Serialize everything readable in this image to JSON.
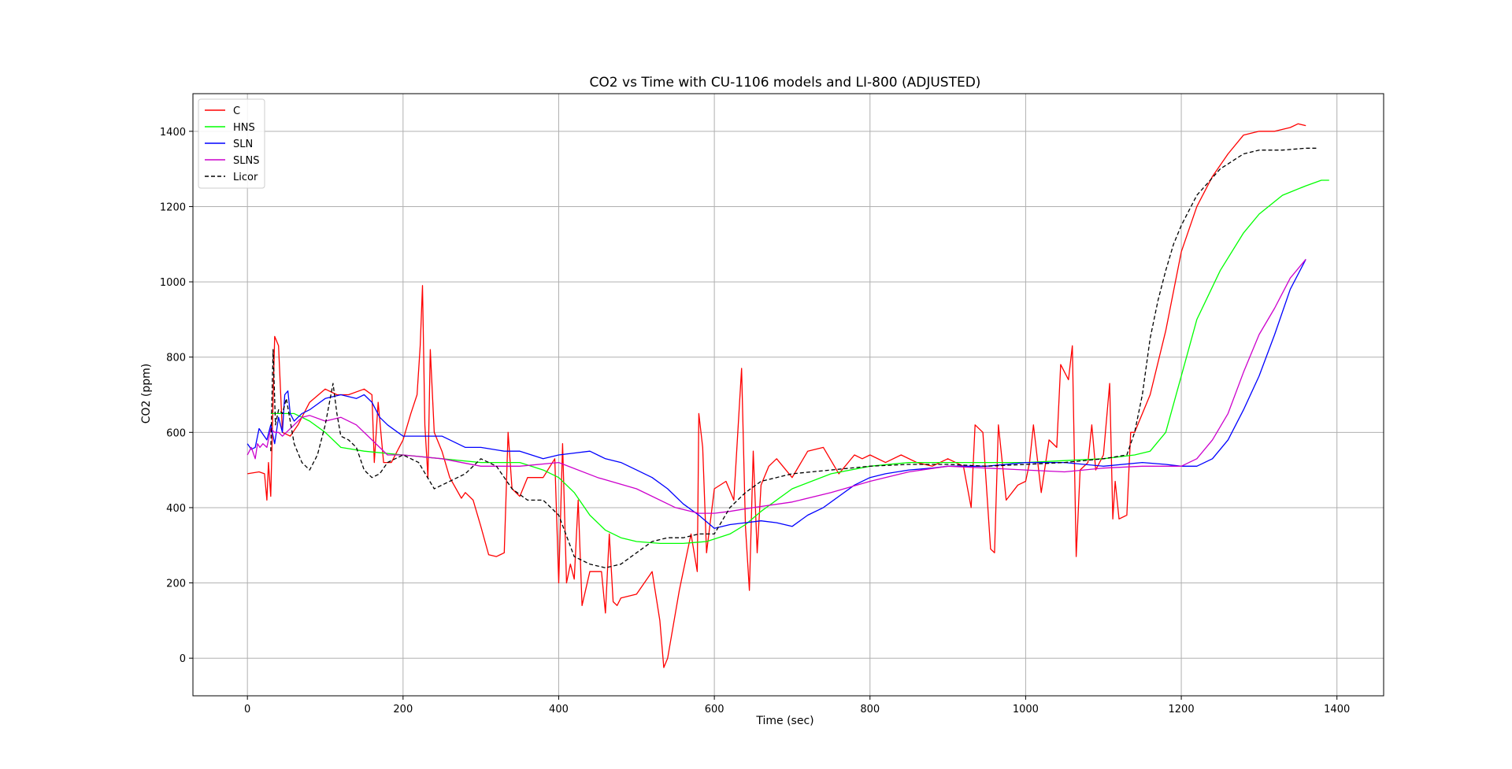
{
  "chart_data": {
    "type": "line",
    "title": "CO2 vs Time with CU-1106 models and LI-800 (ADJUSTED)",
    "xlabel": "Time (sec)",
    "ylabel": "CO2 (ppm)",
    "xlim": [
      -70,
      1460
    ],
    "ylim": [
      -100,
      1500
    ],
    "xticks": [
      0,
      200,
      400,
      600,
      800,
      1000,
      1200,
      1400
    ],
    "yticks": [
      0,
      200,
      400,
      600,
      800,
      1000,
      1200,
      1400
    ],
    "grid": true,
    "legend_position": "top-left",
    "series": [
      {
        "name": "C",
        "color": "#ff0000",
        "dash": "solid",
        "x": [
          0,
          15,
          22,
          25,
          27,
          30,
          35,
          40,
          45,
          55,
          65,
          80,
          100,
          115,
          130,
          150,
          160,
          163,
          168,
          175,
          185,
          200,
          210,
          218,
          222,
          225,
          228,
          232,
          235,
          240,
          250,
          260,
          275,
          280,
          290,
          300,
          310,
          320,
          330,
          335,
          340,
          350,
          360,
          380,
          395,
          400,
          405,
          410,
          415,
          420,
          425,
          430,
          440,
          455,
          460,
          465,
          470,
          475,
          480,
          500,
          520,
          530,
          535,
          540,
          555,
          570,
          578,
          580,
          585,
          590,
          600,
          615,
          625,
          635,
          640,
          645,
          650,
          655,
          660,
          670,
          680,
          700,
          720,
          740,
          760,
          780,
          790,
          800,
          820,
          840,
          860,
          880,
          900,
          920,
          930,
          935,
          945,
          955,
          960,
          965,
          975,
          990,
          1000,
          1005,
          1010,
          1020,
          1030,
          1040,
          1045,
          1055,
          1060,
          1065,
          1070,
          1080,
          1085,
          1090,
          1100,
          1108,
          1112,
          1115,
          1120,
          1130,
          1135,
          1140,
          1160,
          1180,
          1200,
          1220,
          1240,
          1260,
          1280,
          1300,
          1320,
          1340,
          1350,
          1360
        ],
        "y": [
          490,
          495,
          490,
          420,
          520,
          430,
          855,
          830,
          600,
          590,
          620,
          680,
          715,
          700,
          700,
          715,
          700,
          520,
          680,
          520,
          520,
          580,
          650,
          700,
          830,
          990,
          620,
          480,
          820,
          600,
          550,
          480,
          425,
          440,
          420,
          350,
          275,
          270,
          280,
          600,
          450,
          430,
          480,
          480,
          530,
          200,
          570,
          200,
          250,
          210,
          420,
          140,
          230,
          230,
          120,
          330,
          150,
          140,
          160,
          170,
          230,
          100,
          -25,
          0,
          180,
          330,
          230,
          650,
          560,
          280,
          450,
          470,
          420,
          770,
          350,
          180,
          550,
          280,
          460,
          510,
          530,
          480,
          550,
          560,
          490,
          540,
          530,
          540,
          520,
          540,
          520,
          510,
          530,
          510,
          400,
          620,
          600,
          290,
          280,
          620,
          420,
          460,
          470,
          520,
          620,
          440,
          580,
          560,
          780,
          740,
          830,
          270,
          500,
          520,
          620,
          500,
          540,
          730,
          370,
          470,
          370,
          380,
          600,
          600,
          700,
          870,
          1080,
          1200,
          1280,
          1340,
          1390,
          1400,
          1400,
          1410,
          1420,
          1415
        ]
      },
      {
        "name": "HNS",
        "color": "#00ff00",
        "dash": "solid",
        "x": [
          30,
          60,
          80,
          100,
          120,
          150,
          200,
          250,
          300,
          350,
          380,
          400,
          420,
          440,
          460,
          480,
          500,
          530,
          560,
          590,
          620,
          640,
          660,
          700,
          750,
          800,
          850,
          900,
          950,
          1000,
          1050,
          1100,
          1140,
          1160,
          1180,
          1200,
          1220,
          1250,
          1280,
          1300,
          1330,
          1360,
          1380,
          1390
        ],
        "y": [
          650,
          650,
          630,
          600,
          560,
          550,
          540,
          530,
          520,
          520,
          500,
          480,
          440,
          380,
          340,
          320,
          310,
          305,
          305,
          310,
          330,
          355,
          390,
          450,
          490,
          510,
          520,
          520,
          520,
          520,
          525,
          530,
          540,
          550,
          600,
          750,
          900,
          1030,
          1130,
          1180,
          1230,
          1255,
          1270,
          1270
        ]
      },
      {
        "name": "SLN",
        "color": "#0000ff",
        "dash": "solid",
        "x": [
          0,
          5,
          10,
          15,
          20,
          25,
          30,
          35,
          40,
          45,
          48,
          52,
          55,
          60,
          70,
          80,
          100,
          120,
          140,
          150,
          160,
          170,
          180,
          200,
          220,
          250,
          280,
          300,
          330,
          350,
          380,
          400,
          420,
          440,
          460,
          480,
          500,
          520,
          540,
          560,
          580,
          600,
          620,
          640,
          660,
          680,
          700,
          720,
          740,
          760,
          780,
          800,
          820,
          850,
          880,
          900,
          950,
          1000,
          1050,
          1100,
          1150,
          1180,
          1200,
          1220,
          1240,
          1260,
          1280,
          1300,
          1320,
          1340,
          1360
        ],
        "y": [
          570,
          555,
          560,
          610,
          595,
          580,
          620,
          570,
          640,
          600,
          700,
          710,
          650,
          630,
          650,
          660,
          690,
          700,
          690,
          700,
          680,
          640,
          620,
          590,
          590,
          590,
          560,
          560,
          550,
          550,
          530,
          540,
          545,
          550,
          530,
          520,
          500,
          480,
          450,
          410,
          380,
          345,
          355,
          360,
          365,
          360,
          350,
          380,
          400,
          430,
          460,
          480,
          490,
          500,
          505,
          510,
          510,
          520,
          520,
          510,
          520,
          515,
          510,
          510,
          530,
          580,
          660,
          750,
          860,
          980,
          1060
        ]
      },
      {
        "name": "SLNS",
        "color": "#cc00cc",
        "dash": "solid",
        "x": [
          0,
          5,
          10,
          13,
          16,
          20,
          25,
          30,
          35,
          40,
          45,
          50,
          60,
          70,
          80,
          100,
          120,
          140,
          160,
          180,
          200,
          250,
          300,
          350,
          400,
          450,
          500,
          550,
          580,
          600,
          620,
          650,
          700,
          750,
          800,
          850,
          900,
          950,
          1000,
          1050,
          1100,
          1150,
          1200,
          1220,
          1240,
          1260,
          1280,
          1300,
          1320,
          1340,
          1360
        ],
        "y": [
          540,
          560,
          530,
          570,
          560,
          570,
          560,
          610,
          600,
          600,
          590,
          600,
          620,
          640,
          645,
          630,
          640,
          620,
          580,
          540,
          540,
          530,
          510,
          510,
          520,
          480,
          450,
          400,
          385,
          385,
          390,
          400,
          415,
          440,
          470,
          495,
          510,
          505,
          500,
          495,
          505,
          510,
          510,
          530,
          580,
          650,
          760,
          860,
          930,
          1010,
          1060
        ]
      },
      {
        "name": "Licor",
        "color": "#000000",
        "dash": "dashed",
        "x": [
          30,
          33,
          36,
          40,
          45,
          50,
          60,
          70,
          80,
          90,
          100,
          110,
          115,
          120,
          130,
          140,
          150,
          160,
          170,
          180,
          200,
          220,
          240,
          260,
          280,
          300,
          320,
          340,
          360,
          380,
          400,
          420,
          440,
          460,
          480,
          500,
          520,
          540,
          560,
          580,
          600,
          620,
          640,
          660,
          680,
          700,
          750,
          800,
          850,
          900,
          950,
          1000,
          1050,
          1100,
          1130,
          1140,
          1150,
          1160,
          1170,
          1180,
          1190,
          1200,
          1220,
          1250,
          1280,
          1300,
          1330,
          1360,
          1375
        ],
        "y": [
          550,
          820,
          620,
          660,
          650,
          690,
          570,
          520,
          500,
          540,
          620,
          730,
          650,
          590,
          580,
          560,
          500,
          480,
          490,
          520,
          540,
          520,
          450,
          470,
          490,
          530,
          510,
          450,
          420,
          420,
          380,
          270,
          250,
          240,
          250,
          280,
          310,
          320,
          320,
          330,
          330,
          400,
          440,
          470,
          480,
          490,
          500,
          510,
          515,
          515,
          510,
          515,
          520,
          530,
          540,
          600,
          700,
          850,
          950,
          1030,
          1100,
          1150,
          1230,
          1300,
          1340,
          1350,
          1350,
          1355,
          1355
        ]
      }
    ]
  }
}
